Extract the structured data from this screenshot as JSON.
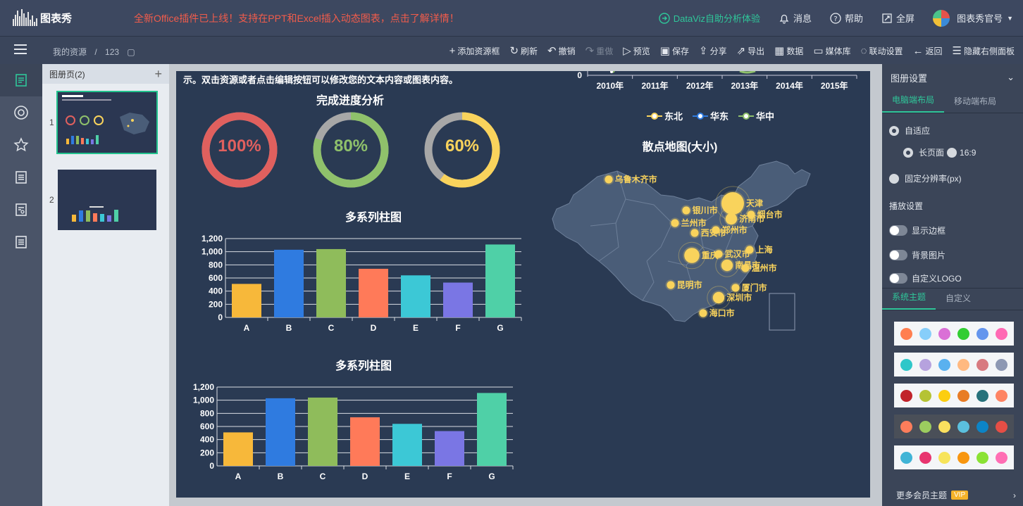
{
  "app": {
    "logo_text": "图表秀",
    "promo": "全新Office插件已上线！支持在PPT和Excel插入动态图表，点击了解详情！"
  },
  "top_nav": {
    "dataviz": "DataViz自助分析体验",
    "messages": "消息",
    "help": "帮助",
    "fullscreen": "全屏",
    "account": "图表秀官号"
  },
  "breadcrumb": {
    "root": "我的资源",
    "separator": "/",
    "current": "123"
  },
  "toolbar": {
    "add_frame": "添加资源框",
    "refresh": "刷新",
    "undo": "撤销",
    "redo": "重做",
    "preview": "预览",
    "save": "保存",
    "share": "分享",
    "export": "导出",
    "data": "数据",
    "media": "媒体库",
    "link": "联动设置",
    "back": "返回",
    "hide_panel": "隐藏右侧面板"
  },
  "pages_panel": {
    "title": "图册页(2)",
    "pages": [
      {
        "num": "1"
      },
      {
        "num": "2"
      }
    ]
  },
  "canvas": {
    "note": "示。双击资源或者点击编辑按钮可以修改您的文本内容或图表内容。",
    "progress_title": "完成进度分析",
    "map_title": "散点地图(大小)",
    "legend": [
      "东北",
      "华东",
      "华中"
    ],
    "line_axis": {
      "y_zero": "0",
      "years": [
        "2010年",
        "2011年",
        "2012年",
        "2013年",
        "2014年",
        "2015年"
      ]
    }
  },
  "chart_data": [
    {
      "type": "pie",
      "title": "完成进度分析",
      "series": [
        {
          "name": "",
          "values": [
            100
          ],
          "label": "100%",
          "color": "#e0605e"
        },
        {
          "name": "",
          "values": [
            80
          ],
          "label": "80%",
          "color": "#8fc16b"
        },
        {
          "name": "",
          "values": [
            60
          ],
          "label": "60%",
          "color": "#f9d35c"
        }
      ]
    },
    {
      "type": "bar",
      "title": "多系列柱图",
      "categories": [
        "A",
        "B",
        "C",
        "D",
        "E",
        "F",
        "G"
      ],
      "values": [
        510,
        1030,
        1040,
        740,
        640,
        530,
        1110
      ],
      "y_ticks": [
        "0",
        "200",
        "400",
        "600",
        "800",
        "1,000",
        "1,200"
      ],
      "ylim": [
        0,
        1200
      ],
      "colors": [
        "#f7b83a",
        "#2f7be0",
        "#8fbc5b",
        "#ff7a59",
        "#3cc8d6",
        "#7a76e4",
        "#4fd0a7"
      ]
    },
    {
      "type": "bar",
      "title": "多系列柱图",
      "categories": [
        "A",
        "B",
        "C",
        "D",
        "E",
        "F",
        "G"
      ],
      "values": [
        510,
        1030,
        1040,
        740,
        640,
        530,
        1110
      ],
      "y_ticks": [
        "0",
        "200",
        "400",
        "600",
        "800",
        "1,000",
        "1,200"
      ],
      "ylim": [
        0,
        1200
      ],
      "colors": [
        "#f7b83a",
        "#2f7be0",
        "#8fbc5b",
        "#ff7a59",
        "#3cc8d6",
        "#7a76e4",
        "#4fd0a7"
      ]
    },
    {
      "type": "scatter",
      "title": "散点地图(大小)",
      "points": [
        {
          "name": "乌鲁木齐市",
          "size": 1
        },
        {
          "name": "银川市",
          "size": 1
        },
        {
          "name": "兰州市",
          "size": 1
        },
        {
          "name": "西安市",
          "size": 1
        },
        {
          "name": "郑州市",
          "size": 1
        },
        {
          "name": "天津",
          "size": 5
        },
        {
          "name": "济南市",
          "size": 2
        },
        {
          "name": "烟台市",
          "size": 1
        },
        {
          "name": "重庆",
          "size": 3
        },
        {
          "name": "武汉市",
          "size": 1
        },
        {
          "name": "南昌市",
          "size": 2
        },
        {
          "name": "上海",
          "size": 1
        },
        {
          "name": "温州市",
          "size": 1
        },
        {
          "name": "昆明市",
          "size": 1
        },
        {
          "name": "厦门市",
          "size": 1
        },
        {
          "name": "深圳市",
          "size": 2
        },
        {
          "name": "海口市",
          "size": 1
        }
      ]
    }
  ],
  "right_panel": {
    "title": "图册设置",
    "tabs": [
      "电脑端布局",
      "移动端布局"
    ],
    "adapt": "自适应",
    "long_page": "长页面",
    "ratio": "16:9",
    "fixed": "固定分辨率(px)",
    "play_settings": "播放设置",
    "show_border": "显示边框",
    "bg_image": "背景图片",
    "custom_logo": "自定义LOGO",
    "theme_tabs": [
      "系统主题",
      "自定义"
    ],
    "themes": [
      [
        "#ff7f50",
        "#87cefa",
        "#da70d6",
        "#32cd32",
        "#6495ed",
        "#ff69b4"
      ],
      [
        "#2ec7c9",
        "#b6a2de",
        "#5ab1ef",
        "#ffb980",
        "#d87a80",
        "#8d98b3"
      ],
      [
        "#c1232b",
        "#b5c334",
        "#fcce10",
        "#e87c25",
        "#27727b",
        "#fe8463"
      ],
      [
        "#fc7d5b",
        "#9ccc5f",
        "#fbe05e",
        "#5bc0de",
        "#0c84c6",
        "#e54e45"
      ],
      [
        "#40b4d6",
        "#e8356f",
        "#f7e45a",
        "#f8960f",
        "#8ae234",
        "#ff6eb4"
      ]
    ],
    "more_themes": "更多会员主题",
    "vip": "VIP"
  }
}
